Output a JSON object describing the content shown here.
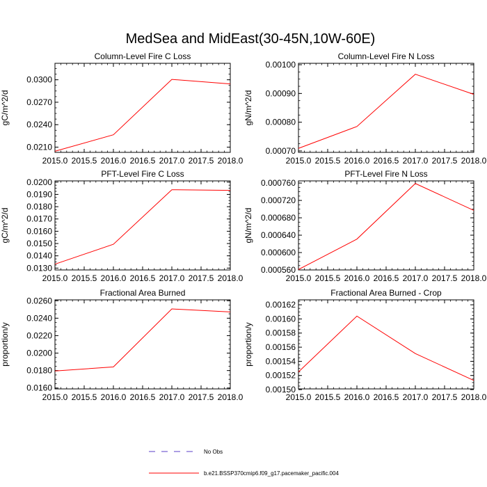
{
  "figure": {
    "title": "MedSea and MidEast(30-45N,10W-60E)",
    "series_color": "#ff0000",
    "obs_color": "#5a3cc8",
    "legend": {
      "obs_label": "No Obs",
      "model_label": "b.e21.BSSP370cmip6.f09_g17.pacemaker_pacific.004"
    }
  },
  "chart_data": [
    {
      "type": "line",
      "title": "Column-Level Fire C Loss",
      "ylabel": "gC/m^2/d",
      "xlim": [
        2015.0,
        2018.0
      ],
      "ylim": [
        0.0203,
        0.0322
      ],
      "xticks": [
        "2015.0",
        "2015.5",
        "2016.0",
        "2016.5",
        "2017.0",
        "2017.5",
        "2018.0"
      ],
      "yticks": [
        "0.0210",
        "0.0240",
        "0.0270",
        "0.0300"
      ],
      "x": [
        2015,
        2016,
        2017,
        2018
      ],
      "series": [
        {
          "values": [
            0.02045,
            0.02265,
            0.03005,
            0.02945
          ]
        }
      ]
    },
    {
      "type": "line",
      "title": "Column-Level Fire N Loss",
      "ylabel": "gN/m^2/d",
      "xlim": [
        2015.0,
        2018.0
      ],
      "ylim": [
        0.000695,
        0.001005
      ],
      "xticks": [
        "2015.0",
        "2015.5",
        "2016.0",
        "2016.5",
        "2017.0",
        "2017.5",
        "2018.0"
      ],
      "yticks": [
        "0.00070",
        "0.00080",
        "0.00090",
        "0.00100"
      ],
      "x": [
        2015,
        2016,
        2017,
        2018
      ],
      "series": [
        {
          "values": [
            0.000709,
            0.000785,
            0.000967,
            0.000897
          ]
        }
      ]
    },
    {
      "type": "line",
      "title": "PFT-Level Fire C Loss",
      "ylabel": "gC/m^2/d",
      "xlim": [
        2015.0,
        2018.0
      ],
      "ylim": [
        0.01285,
        0.0201
      ],
      "xticks": [
        "2015.0",
        "2015.5",
        "2016.0",
        "2016.5",
        "2017.0",
        "2017.5",
        "2018.0"
      ],
      "yticks": [
        "0.0130",
        "0.0140",
        "0.0150",
        "0.0160",
        "0.0170",
        "0.0180",
        "0.0190",
        "0.0200"
      ],
      "x": [
        2015,
        2016,
        2017,
        2018
      ],
      "series": [
        {
          "values": [
            0.01332,
            0.01494,
            0.01938,
            0.01933
          ]
        }
      ]
    },
    {
      "type": "line",
      "title": "PFT-Level Fire N Loss",
      "ylabel": "gN/m^2/d",
      "xlim": [
        2015.0,
        2018.0
      ],
      "ylim": [
        0.00056,
        0.000765
      ],
      "xticks": [
        "2015.0",
        "2015.5",
        "2016.0",
        "2016.5",
        "2017.0",
        "2017.5",
        "2018.0"
      ],
      "yticks": [
        "0.000560",
        "0.000600",
        "0.000640",
        "0.000680",
        "0.000720",
        "0.000760"
      ],
      "x": [
        2015,
        2016,
        2017,
        2018
      ],
      "series": [
        {
          "values": [
            0.000561,
            0.000631,
            0.000759,
            0.000697
          ]
        }
      ]
    },
    {
      "type": "line",
      "title": "Fractional Area Burned",
      "ylabel": "proportion/y",
      "xlim": [
        2015.0,
        2018.0
      ],
      "ylim": [
        0.0159,
        0.0261
      ],
      "xticks": [
        "2015.0",
        "2015.5",
        "2016.0",
        "2016.5",
        "2017.0",
        "2017.5",
        "2018.0"
      ],
      "yticks": [
        "0.0160",
        "0.0180",
        "0.0200",
        "0.0220",
        "0.0240",
        "0.0260"
      ],
      "x": [
        2015,
        2016,
        2017,
        2018
      ],
      "series": [
        {
          "values": [
            0.01795,
            0.01842,
            0.02506,
            0.02472
          ]
        }
      ]
    },
    {
      "type": "line",
      "title": "Fractional Area Burned - Crop",
      "ylabel": "proportion/y",
      "xlim": [
        2015.0,
        2018.0
      ],
      "ylim": [
        0.001501,
        0.001627
      ],
      "xticks": [
        "2015.0",
        "2015.5",
        "2016.0",
        "2016.5",
        "2017.0",
        "2017.5",
        "2018.0"
      ],
      "yticks": [
        "0.00150",
        "0.00152",
        "0.00154",
        "0.00156",
        "0.00158",
        "0.00160",
        "0.00162"
      ],
      "x": [
        2015,
        2016,
        2017,
        2018
      ],
      "series": [
        {
          "values": [
            0.001525,
            0.001604,
            0.001551,
            0.001513
          ]
        }
      ]
    }
  ]
}
